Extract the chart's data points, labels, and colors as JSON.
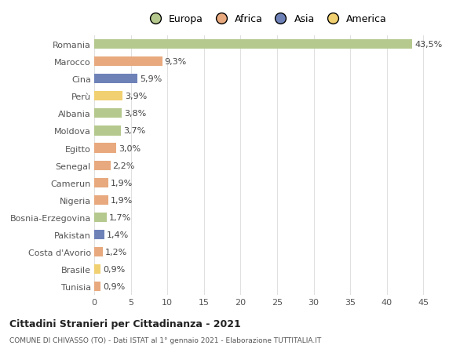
{
  "countries": [
    "Romania",
    "Marocco",
    "Cina",
    "Perù",
    "Albania",
    "Moldova",
    "Egitto",
    "Senegal",
    "Camerun",
    "Nigeria",
    "Bosnia-Erzegovina",
    "Pakistan",
    "Costa d'Avorio",
    "Brasile",
    "Tunisia"
  ],
  "values": [
    43.5,
    9.3,
    5.9,
    3.9,
    3.8,
    3.7,
    3.0,
    2.2,
    1.9,
    1.9,
    1.7,
    1.4,
    1.2,
    0.9,
    0.9
  ],
  "labels": [
    "43,5%",
    "9,3%",
    "5,9%",
    "3,9%",
    "3,8%",
    "3,7%",
    "3,0%",
    "2,2%",
    "1,9%",
    "1,9%",
    "1,7%",
    "1,4%",
    "1,2%",
    "0,9%",
    "0,9%"
  ],
  "colors": [
    "#b5c98e",
    "#e8a97e",
    "#6e82b8",
    "#f0d070",
    "#b5c98e",
    "#b5c98e",
    "#e8a97e",
    "#e8a97e",
    "#e8a97e",
    "#e8a97e",
    "#b5c98e",
    "#6e82b8",
    "#e8a97e",
    "#f0d070",
    "#e8a97e"
  ],
  "continent_colors": {
    "Europa": "#b5c98e",
    "Africa": "#e8a97e",
    "Asia": "#6e82b8",
    "America": "#f0d070"
  },
  "title_bold": "Cittadini Stranieri per Cittadinanza - 2021",
  "subtitle": "COMUNE DI CHIVASSO (TO) - Dati ISTAT al 1° gennaio 2021 - Elaborazione TUTTITALIA.IT",
  "xlim": [
    0,
    47
  ],
  "xticks": [
    0,
    5,
    10,
    15,
    20,
    25,
    30,
    35,
    40,
    45
  ],
  "background_color": "#ffffff",
  "grid_color": "#e0e0e0",
  "bar_height": 0.55,
  "label_fontsize": 8.0,
  "ytick_fontsize": 8.0,
  "xtick_fontsize": 8.0,
  "legend_fontsize": 9.0
}
